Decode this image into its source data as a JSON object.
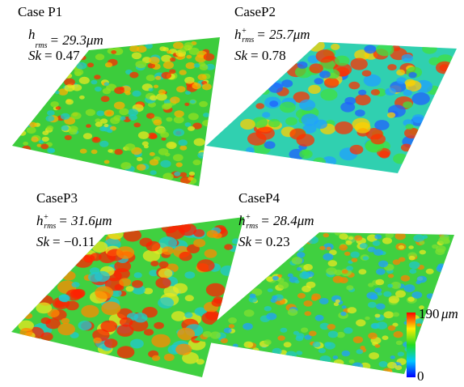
{
  "panels": [
    {
      "title": "Case P1",
      "h_symbol": "h",
      "h_sup": "",
      "h_sub": "rms",
      "h_text": "= 29.3μm",
      "sk_symbol": "Sk",
      "sk_text": "= 0.47"
    },
    {
      "title": "CaseP2",
      "h_symbol": "h",
      "h_sup": "+",
      "h_sub": "rms",
      "h_text": "= 25.7μm",
      "sk_symbol": "Sk",
      "sk_text": "= 0.78"
    },
    {
      "title": "CaseP3",
      "h_symbol": "h",
      "h_sup": "+",
      "h_sub": "rms",
      "h_text": "= 31.6μm",
      "sk_symbol": "Sk",
      "sk_text": "= −0.11"
    },
    {
      "title": "CaseP4",
      "h_symbol": "h",
      "h_sup": "+",
      "h_sub": "rms",
      "h_text": "= 28.4μm",
      "sk_symbol": "Sk",
      "sk_text": "= 0.23"
    }
  ],
  "colorbar": {
    "max": 190,
    "min": 0,
    "unit": "μm"
  }
}
